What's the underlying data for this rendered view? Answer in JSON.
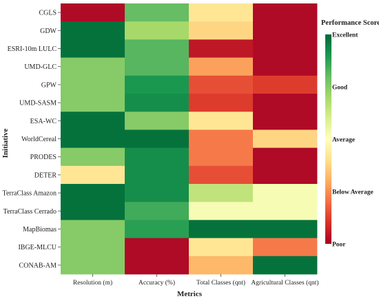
{
  "chart_data": {
    "type": "heatmap",
    "xlabel": "Metrics",
    "ylabel": "Initiative",
    "columns": [
      "Resolution (m)",
      "Accuracy (%)",
      "Total Classes (qnt)",
      "Agricultural Classes (qnt)"
    ],
    "rows": [
      "CGLS",
      "GDW",
      "ESRI-10m LULC",
      "UMD-GLC",
      "GPW",
      "UMD-SASM",
      "ESA-WC",
      "WorldCereal",
      "PRODES",
      "DETER",
      "TerraClass Amazon",
      "TerraClass Cerrado",
      "MapBiomas",
      "IBGE-MLCU",
      "CONAB-AM"
    ],
    "values": [
      [
        0.02,
        0.8,
        0.42,
        0.02
      ],
      [
        0.98,
        0.7,
        0.38,
        0.02
      ],
      [
        0.98,
        0.82,
        0.05,
        0.02
      ],
      [
        0.75,
        0.82,
        0.28,
        0.02
      ],
      [
        0.75,
        0.9,
        0.15,
        0.12
      ],
      [
        0.75,
        0.92,
        0.12,
        0.02
      ],
      [
        0.98,
        0.75,
        0.42,
        0.02
      ],
      [
        0.98,
        0.98,
        0.22,
        0.38
      ],
      [
        0.75,
        0.92,
        0.22,
        0.02
      ],
      [
        0.42,
        0.92,
        0.15,
        0.02
      ],
      [
        0.98,
        0.92,
        0.65,
        0.52
      ],
      [
        0.98,
        0.85,
        0.52,
        0.52
      ],
      [
        0.75,
        0.88,
        0.98,
        0.98
      ],
      [
        0.75,
        0.02,
        0.42,
        0.22
      ],
      [
        0.75,
        0.02,
        0.32,
        0.98
      ]
    ],
    "colorbar": {
      "title": "Performance Score",
      "range": [
        0,
        1
      ],
      "labels": [
        {
          "text": "Excellent",
          "value": 1.0
        },
        {
          "text": "Good",
          "value": 0.75
        },
        {
          "text": "Average",
          "value": 0.5
        },
        {
          "text": "Below Average",
          "value": 0.25
        },
        {
          "text": "Poor",
          "value": 0.0
        }
      ],
      "colors": [
        "#a50026",
        "#d73027",
        "#f46d43",
        "#fdae61",
        "#fee08b",
        "#ffffbf",
        "#d9ef8b",
        "#a6d96a",
        "#66bd63",
        "#1a9850",
        "#006837"
      ]
    }
  }
}
